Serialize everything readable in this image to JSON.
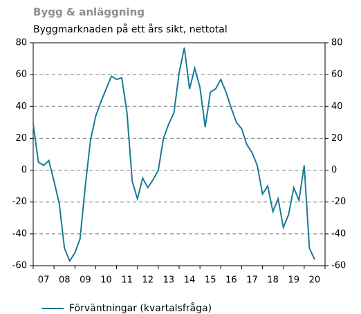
{
  "chart_data": {
    "type": "line",
    "title": "Bygg & anläggning",
    "subtitle": "Byggmarknaden på ett års sikt, nettotal",
    "x": [
      2007,
      2007.25,
      2007.5,
      2007.75,
      2008,
      2008.25,
      2008.5,
      2008.75,
      2009,
      2009.25,
      2009.5,
      2009.75,
      2010,
      2010.25,
      2010.5,
      2010.75,
      2011,
      2011.25,
      2011.5,
      2011.75,
      2012,
      2012.25,
      2012.5,
      2012.75,
      2013,
      2013.25,
      2013.5,
      2013.75,
      2014,
      2014.25,
      2014.5,
      2014.75,
      2015,
      2015.25,
      2015.5,
      2015.75,
      2016,
      2016.25,
      2016.5,
      2016.75,
      2017,
      2017.25,
      2017.5,
      2017.75,
      2018,
      2018.25,
      2018.5,
      2018.75,
      2019,
      2019.25,
      2019.5,
      2019.75,
      2020,
      2020.25,
      2020.5
    ],
    "series": [
      {
        "name": "Förväntningar (kvartalsfråga)",
        "color": "#1a7a96",
        "values": [
          29,
          5,
          3,
          6,
          -7,
          -21,
          -49,
          -57,
          -52,
          -43,
          -10,
          19,
          34,
          43,
          51,
          59,
          57,
          58,
          36,
          -7,
          -18,
          -5,
          -11,
          -6,
          0,
          20,
          29,
          36,
          61,
          77,
          51,
          64,
          52,
          27,
          49,
          51,
          57,
          49,
          39,
          30,
          26,
          16,
          11,
          3,
          -15,
          -10,
          -26,
          -18,
          -36,
          -28,
          -11,
          -19,
          3,
          -49,
          -56
        ]
      }
    ],
    "xlim": [
      2007,
      2021
    ],
    "xticks": [
      {
        "value": 2007.5,
        "label": "07"
      },
      {
        "value": 2008.5,
        "label": "08"
      },
      {
        "value": 2009.5,
        "label": "09"
      },
      {
        "value": 2010.5,
        "label": "10"
      },
      {
        "value": 2011.5,
        "label": "11"
      },
      {
        "value": 2012.5,
        "label": "12"
      },
      {
        "value": 2013.5,
        "label": "13"
      },
      {
        "value": 2014.5,
        "label": "14"
      },
      {
        "value": 2015.5,
        "label": "15"
      },
      {
        "value": 2016.5,
        "label": "16"
      },
      {
        "value": 2017.5,
        "label": "17"
      },
      {
        "value": 2018.5,
        "label": "18"
      },
      {
        "value": 2019.5,
        "label": "19"
      },
      {
        "value": 2020.5,
        "label": "20"
      }
    ],
    "ylim": [
      -60,
      80
    ],
    "yticks": [
      -60,
      -40,
      -20,
      0,
      20,
      40,
      60,
      80
    ],
    "y2lim": [
      -60,
      80
    ],
    "y2ticks": [
      -60,
      -40,
      -20,
      0,
      20,
      40,
      60,
      80
    ],
    "grid": true
  }
}
